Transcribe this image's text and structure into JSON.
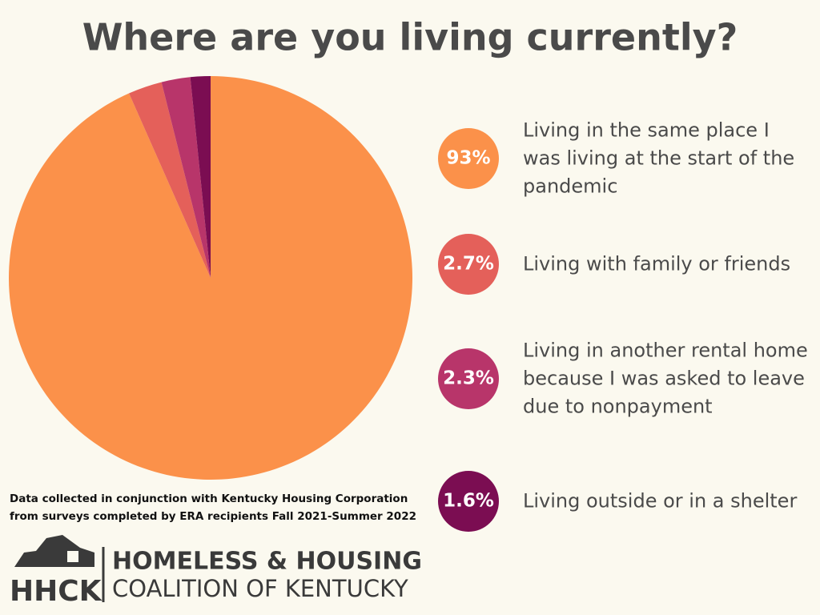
{
  "chart_data": {
    "type": "pie",
    "title": "Where are you living currently?",
    "categories": [
      "Living in the same place I was living at the start of the pandemic",
      "Living with family or friends",
      "Living in another rental home because I was asked to leave due to nonpayment",
      "Living outside or in a shelter"
    ],
    "values": [
      93,
      2.7,
      2.3,
      1.6
    ],
    "value_labels": [
      "93%",
      "2.7%",
      "2.3%",
      "1.6%"
    ],
    "colors": [
      "#fb914a",
      "#e4605a",
      "#b8356a",
      "#7b0d52"
    ]
  },
  "footnote": [
    "Data collected in conjunction with Kentucky Housing Corporation",
    "from surveys completed by ERA recipients Fall 2021-Summer 2022"
  ],
  "logo": {
    "abbreviation": "HHCK",
    "line1": "HOMELESS & HOUSING",
    "line2": "COALITION OF KENTUCKY"
  }
}
